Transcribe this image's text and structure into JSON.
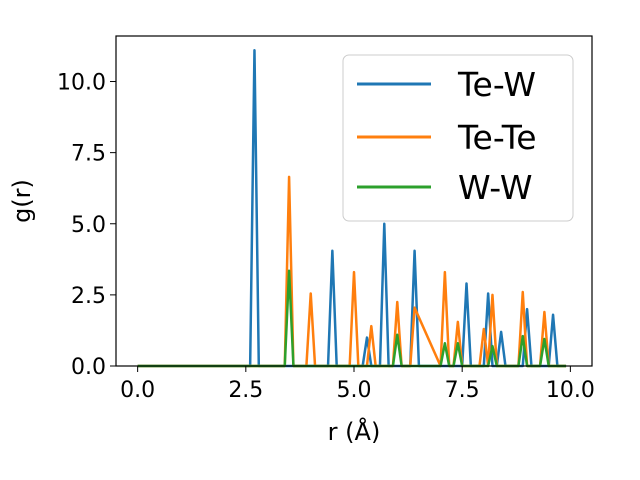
{
  "chart_data": {
    "type": "line",
    "title": "",
    "xlabel": "r (Å)",
    "ylabel": "g(r)",
    "xlim": [
      -0.5,
      10.5
    ],
    "ylim": [
      0,
      11.6
    ],
    "xticks": [
      0.0,
      2.5,
      5.0,
      7.5,
      10.0
    ],
    "xtick_labels": [
      "0.0",
      "2.5",
      "5.0",
      "7.5",
      "10.0"
    ],
    "yticks": [
      0.0,
      2.5,
      5.0,
      7.5,
      10.0
    ],
    "ytick_labels": [
      "0.0",
      "2.5",
      "5.0",
      "7.5",
      "10.0"
    ],
    "grid": false,
    "legend_position": "top-right",
    "series": [
      {
        "name": "Te-W",
        "color": "#1f77b4",
        "x": [
          0.0,
          2.6,
          2.7,
          2.8,
          3.4,
          4.4,
          4.5,
          4.6,
          5.2,
          5.3,
          5.4,
          5.6,
          5.7,
          5.8,
          6.3,
          6.4,
          6.5,
          7.5,
          7.6,
          7.7,
          8.0,
          8.1,
          8.2,
          8.3,
          8.4,
          8.5,
          8.9,
          9.0,
          9.1,
          9.5,
          9.6,
          9.7,
          9.9
        ],
        "y": [
          0.0,
          0.0,
          11.1,
          0.0,
          0.0,
          0.0,
          4.05,
          0.0,
          0.0,
          1.0,
          0.0,
          0.0,
          5.0,
          0.0,
          0.0,
          4.05,
          0.0,
          0.0,
          2.9,
          0.0,
          0.0,
          2.55,
          0.0,
          0.0,
          1.2,
          0.0,
          0.0,
          2.0,
          0.0,
          0.0,
          1.8,
          0.0,
          0.0
        ]
      },
      {
        "name": "Te-Te",
        "color": "#ff7f0e",
        "x": [
          0.0,
          3.4,
          3.5,
          3.6,
          3.9,
          4.0,
          4.1,
          4.9,
          5.0,
          5.1,
          5.3,
          5.4,
          5.5,
          5.9,
          6.0,
          6.1,
          6.2,
          6.3,
          6.4,
          7.0,
          7.1,
          7.2,
          7.3,
          7.4,
          7.5,
          7.9,
          8.0,
          8.1,
          8.2,
          8.3,
          8.8,
          8.9,
          9.0,
          9.3,
          9.4,
          9.5,
          9.9
        ],
        "y": [
          0.0,
          0.0,
          6.65,
          0.0,
          0.0,
          2.55,
          0.0,
          0.0,
          3.3,
          0.0,
          0.0,
          1.4,
          0.0,
          0.0,
          2.25,
          0.0,
          0.0,
          0.0,
          2.05,
          0.0,
          3.3,
          0.0,
          0.0,
          1.55,
          0.0,
          0.0,
          1.3,
          0.0,
          2.5,
          0.0,
          0.0,
          2.6,
          0.0,
          0.0,
          1.9,
          0.0,
          0.0
        ]
      },
      {
        "name": "W-W",
        "color": "#2ca02c",
        "x": [
          0.0,
          3.4,
          3.5,
          3.6,
          5.9,
          6.0,
          6.1,
          7.0,
          7.1,
          7.2,
          7.3,
          7.4,
          7.5,
          8.1,
          8.2,
          8.3,
          8.8,
          8.9,
          9.0,
          9.3,
          9.4,
          9.5,
          9.9
        ],
        "y": [
          0.0,
          0.0,
          3.35,
          0.0,
          0.0,
          1.1,
          0.0,
          0.0,
          0.8,
          0.0,
          0.0,
          0.8,
          0.0,
          0.0,
          0.7,
          0.0,
          0.0,
          1.05,
          0.0,
          0.0,
          0.95,
          0.0,
          0.0
        ]
      }
    ]
  }
}
